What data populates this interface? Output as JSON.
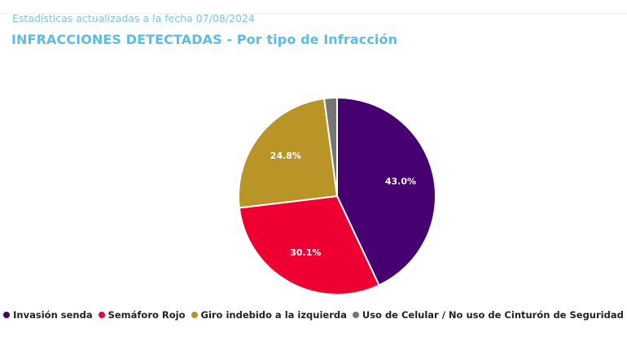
{
  "header": {
    "updated_text": "Estadísticas actualizadas a la fecha 07/08/2024",
    "title": "INFRACCIONES DETECTADAS - Por tipo de Infracción"
  },
  "chart_data": {
    "type": "pie",
    "title": "INFRACCIONES DETECTADAS - Por tipo de Infracción",
    "legend_position": "bottom",
    "slices": [
      {
        "name": "Invasión senda",
        "value": 43.0,
        "label": "43.0%",
        "color": "#46006f"
      },
      {
        "name": "Semáforo Rojo",
        "value": 30.1,
        "label": "30.1%",
        "color": "#ee0033"
      },
      {
        "name": "Giro indebido a la izquierda",
        "value": 24.8,
        "label": "24.8%",
        "color": "#b99528"
      },
      {
        "name": "Uso de Celular / No uso de Cinturón de Seguridad",
        "value": 2.1,
        "label": "",
        "color": "#757575"
      }
    ]
  }
}
